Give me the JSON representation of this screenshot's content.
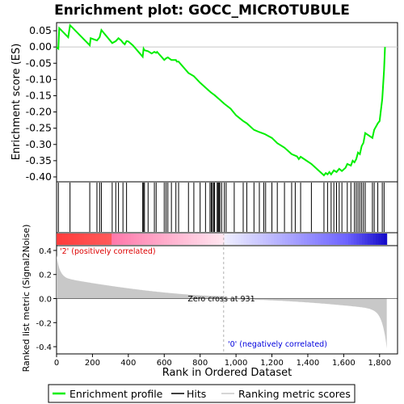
{
  "chart_data": {
    "type": "line",
    "title": "Enrichment plot: GOCC_MICROTUBULE",
    "es_panel": {
      "ylabel": "Enrichment score (ES)",
      "yticks": [
        0.05,
        0.0,
        -0.05,
        -0.1,
        -0.15,
        -0.2,
        -0.25,
        -0.3,
        -0.35,
        -0.4
      ],
      "ytick_labels": [
        "0.05",
        "0.00",
        "-0.05",
        "-0.10",
        "-0.15",
        "-0.20",
        "-0.25",
        "-0.30",
        "-0.35",
        "-0.40"
      ],
      "ylim": [
        -0.415,
        0.075
      ],
      "xlim": [
        0,
        1900
      ],
      "series": [
        {
          "name": "Enrichment profile",
          "color": "#00ee00",
          "x": [
            0,
            10,
            15,
            65,
            75,
            185,
            190,
            225,
            240,
            250,
            310,
            330,
            345,
            360,
            370,
            380,
            390,
            400,
            425,
            480,
            485,
            490,
            510,
            530,
            545,
            555,
            560,
            600,
            610,
            620,
            640,
            665,
            670,
            680,
            735,
            765,
            800,
            830,
            860,
            880,
            905,
            935,
            970,
            1000,
            1040,
            1060,
            1100,
            1130,
            1160,
            1200,
            1230,
            1270,
            1310,
            1340,
            1350,
            1360,
            1420,
            1490,
            1500,
            1510,
            1520,
            1530,
            1545,
            1560,
            1575,
            1590,
            1610,
            1620,
            1640,
            1650,
            1660,
            1670,
            1680,
            1690,
            1700,
            1710,
            1720,
            1760,
            1770,
            1790,
            1800,
            1815,
            1825,
            1830
          ],
          "y": [
            0.0,
            -0.005,
            0.058,
            0.03,
            0.067,
            0.005,
            0.027,
            0.02,
            0.03,
            0.052,
            0.012,
            0.018,
            0.027,
            0.02,
            0.013,
            0.008,
            0.018,
            0.017,
            0.005,
            -0.03,
            -0.005,
            -0.01,
            -0.013,
            -0.02,
            -0.015,
            -0.018,
            -0.015,
            -0.04,
            -0.035,
            -0.032,
            -0.04,
            -0.04,
            -0.045,
            -0.045,
            -0.08,
            -0.09,
            -0.11,
            -0.125,
            -0.14,
            -0.148,
            -0.16,
            -0.175,
            -0.19,
            -0.21,
            -0.228,
            -0.235,
            -0.255,
            -0.262,
            -0.268,
            -0.28,
            -0.296,
            -0.31,
            -0.33,
            -0.337,
            -0.345,
            -0.338,
            -0.36,
            -0.395,
            -0.388,
            -0.392,
            -0.385,
            -0.392,
            -0.38,
            -0.385,
            -0.375,
            -0.382,
            -0.372,
            -0.36,
            -0.365,
            -0.35,
            -0.355,
            -0.345,
            -0.325,
            -0.33,
            -0.305,
            -0.295,
            -0.265,
            -0.28,
            -0.255,
            -0.235,
            -0.228,
            -0.16,
            -0.072,
            0.0
          ]
        }
      ]
    },
    "hits": {
      "name": "Hits",
      "x": [
        10,
        75,
        185,
        225,
        240,
        250,
        310,
        330,
        345,
        370,
        390,
        480,
        485,
        490,
        510,
        545,
        555,
        600,
        610,
        620,
        640,
        665,
        680,
        735,
        765,
        800,
        830,
        855,
        862,
        868,
        875,
        880,
        895,
        900,
        905,
        910,
        920,
        935,
        945,
        990,
        1040,
        1060,
        1100,
        1130,
        1155,
        1165,
        1200,
        1230,
        1270,
        1310,
        1330,
        1360,
        1420,
        1490,
        1510,
        1530,
        1545,
        1560,
        1575,
        1590,
        1620,
        1640,
        1660,
        1670,
        1680,
        1690,
        1700,
        1710,
        1720,
        1760,
        1770,
        1790,
        1815,
        1825
      ]
    },
    "heat_bar": {
      "label_pos": "'2' (positively correlated)",
      "label_neg": "'0' (negatively correlated)"
    },
    "metric_panel": {
      "ylabel": "Ranked list metric (Signal2Noise)",
      "xlabel": "Rank in Ordered Dataset",
      "yticks": [
        0.4,
        0.2,
        0.0,
        -0.2,
        -0.4
      ],
      "ytick_labels": [
        "0.4",
        "0.2",
        "0.0",
        "-0.2",
        "-0.4"
      ],
      "ylim": [
        -0.46,
        0.44
      ],
      "zero_cross": 931,
      "zero_cross_label": "Zero cross at 931",
      "n_genes": 1840
    },
    "xticks": [
      0,
      200,
      400,
      600,
      800,
      1000,
      1200,
      1400,
      1600,
      1800
    ],
    "xtick_labels": [
      "0",
      "200",
      "400",
      "600",
      "800",
      "1,000",
      "1,200",
      "1,400",
      "1,600",
      "1,800"
    ],
    "legend": {
      "placement": "bottom",
      "entries": [
        {
          "label": "Enrichment profile",
          "color": "#00ee00"
        },
        {
          "label": "Hits",
          "color": "#000000"
        },
        {
          "label": "Ranking metric scores",
          "color": "#c8c8c8"
        }
      ]
    }
  }
}
